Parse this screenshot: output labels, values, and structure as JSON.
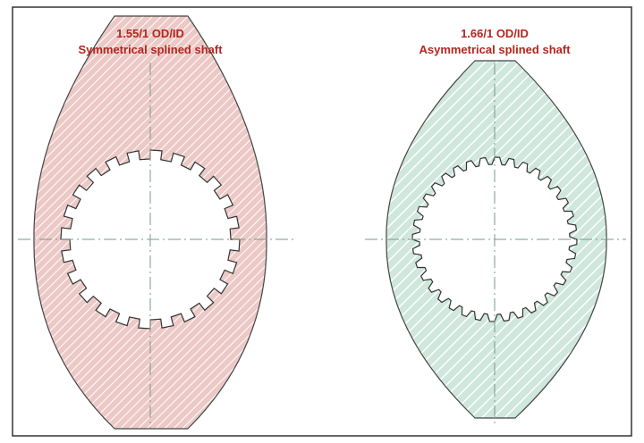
{
  "panels": [
    {
      "title": [
        "1.55/1 OD/ID",
        "Symmetrical splined shaft"
      ]
    },
    {
      "title": [
        "1.66/1 OD/ID",
        "Asymmetrical splined shaft"
      ]
    }
  ]
}
